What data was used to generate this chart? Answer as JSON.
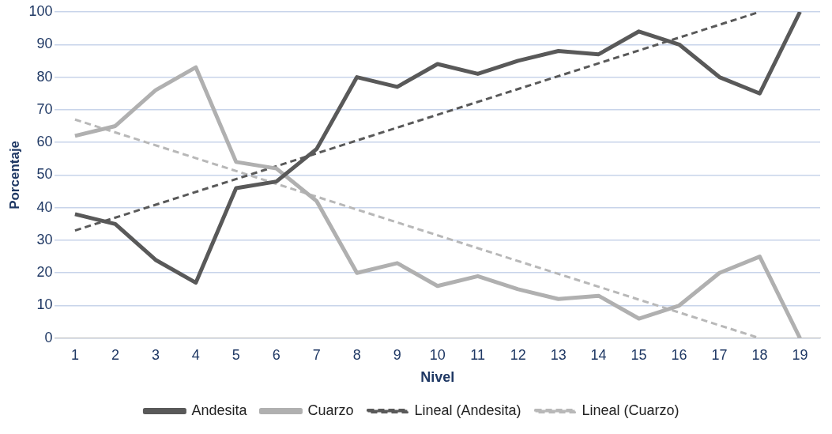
{
  "chart_data": {
    "type": "line",
    "xlabel": "Nivel",
    "ylabel": "Porcentaje",
    "x": [
      1,
      2,
      3,
      4,
      5,
      6,
      7,
      8,
      9,
      10,
      11,
      12,
      13,
      14,
      15,
      16,
      17,
      18,
      19
    ],
    "xlim": [
      0.5,
      19.5
    ],
    "xticks": [
      1,
      2,
      3,
      4,
      5,
      6,
      7,
      8,
      9,
      10,
      11,
      12,
      13,
      14,
      15,
      16,
      17,
      18,
      19
    ],
    "ylim": [
      0,
      100
    ],
    "yticks": [
      0,
      10,
      20,
      30,
      40,
      50,
      60,
      70,
      80,
      90,
      100
    ],
    "grid": "y",
    "legend": "bottom",
    "marker": "none",
    "series": [
      {
        "name": "Andesita",
        "color": "#595959",
        "line_style": "solid",
        "values": [
          38,
          35,
          24,
          17,
          46,
          48,
          58,
          80,
          77,
          84,
          81,
          85,
          88,
          87,
          94,
          90,
          80,
          75,
          100
        ]
      },
      {
        "name": "Cuarzo",
        "color": "#b0b0b0",
        "line_style": "solid",
        "values": [
          62,
          65,
          76,
          83,
          54,
          52,
          42,
          20,
          23,
          16,
          19,
          15,
          12,
          13,
          6,
          10,
          20,
          25,
          0
        ]
      },
      {
        "name": "Lineal (Andesita)",
        "color": "#595959",
        "line_style": "dashed",
        "values": [
          33,
          null,
          null,
          null,
          null,
          null,
          null,
          null,
          null,
          null,
          null,
          null,
          null,
          null,
          null,
          null,
          null,
          100,
          null
        ]
      },
      {
        "name": "Lineal (Cuarzo)",
        "color": "#b8b8b8",
        "line_style": "dashed",
        "values": [
          67,
          null,
          null,
          null,
          null,
          null,
          null,
          null,
          null,
          null,
          null,
          null,
          null,
          null,
          null,
          null,
          null,
          0,
          null
        ]
      }
    ]
  }
}
